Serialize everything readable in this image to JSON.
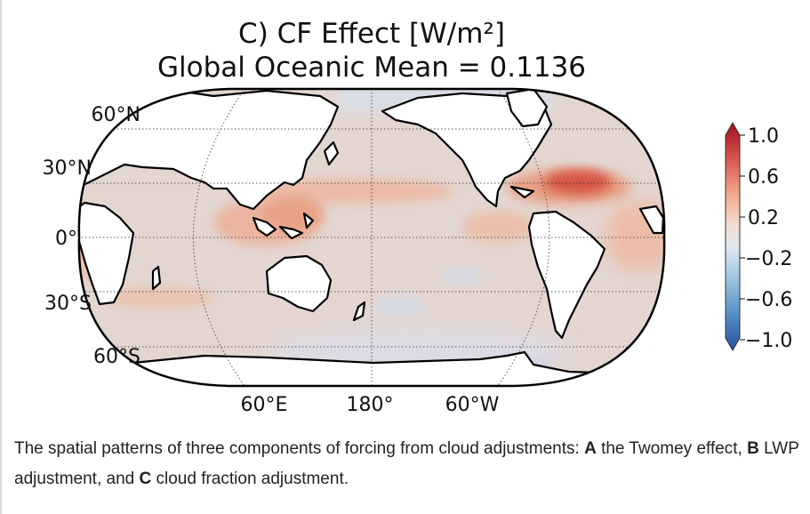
{
  "chart_data": {
    "type": "heatmap",
    "title": "C) CF Effect [W/m²]",
    "subtitle": "Global Oceanic Mean = 0.1136",
    "projection": "Robinson, centered on 180°",
    "latitude_labels": [
      "60°N",
      "30°N",
      "0°",
      "30°S",
      "60°S"
    ],
    "longitude_labels": [
      "60°E",
      "180°",
      "60°W"
    ],
    "colorbar": {
      "colormap": "RdBu_r",
      "ticks": [
        "1.0",
        "0.6",
        "0.2",
        "−0.2",
        "−0.6",
        "−1.0"
      ],
      "range": [
        -1.0,
        1.0
      ],
      "extend": "both"
    },
    "colors": {
      "neutral": "#e3d6d1",
      "positive_light": "#ecc2b0",
      "positive_mid": "#e79277",
      "positive_strong": "#d0413b",
      "negative_light": "#d0d9e8"
    },
    "global_oceanic_mean": 0.1136
  },
  "caption": {
    "part1": "The spatial patterns of three components of forcing from cloud adjustments: ",
    "a": "A",
    "part2": " the Twomey effect, ",
    "b": "B",
    "part3": " LWP adjustment, and ",
    "c": "C",
    "part4": " cloud fraction adjustment."
  }
}
